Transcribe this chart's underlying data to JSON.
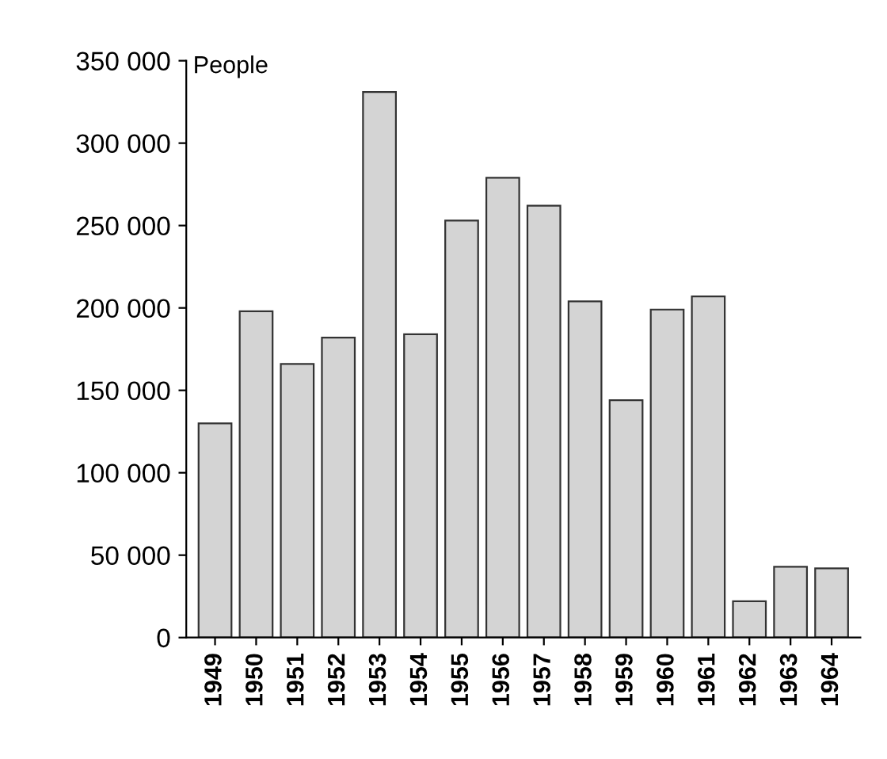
{
  "chart_data": {
    "type": "bar",
    "ylabel": "People",
    "categories": [
      "1949",
      "1950",
      "1951",
      "1952",
      "1953",
      "1954",
      "1955",
      "1956",
      "1957",
      "1958",
      "1959",
      "1960",
      "1961",
      "1962",
      "1963",
      "1964"
    ],
    "values": [
      130000,
      198000,
      166000,
      182000,
      331000,
      184000,
      253000,
      279000,
      262000,
      204000,
      144000,
      199000,
      207000,
      22000,
      43000,
      42000
    ],
    "color": "#d4d4d4",
    "ylim": [
      0,
      350000
    ],
    "yticks": [
      {
        "value": 0,
        "label": "0"
      },
      {
        "value": 50000,
        "label": "50 000"
      },
      {
        "value": 100000,
        "label": "100 000"
      },
      {
        "value": 150000,
        "label": "150 000"
      },
      {
        "value": 200000,
        "label": "200 000"
      },
      {
        "value": 250000,
        "label": "250 000"
      },
      {
        "value": 300000,
        "label": "300 000"
      },
      {
        "value": 350000,
        "label": "350 000"
      }
    ],
    "grid": false
  }
}
